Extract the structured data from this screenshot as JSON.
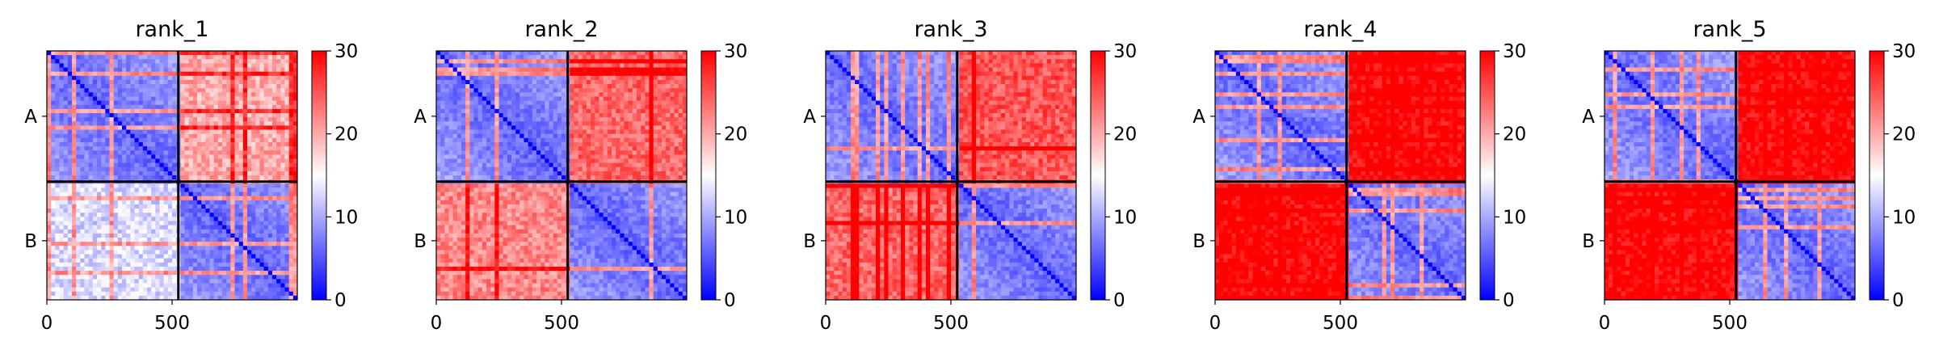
{
  "chart_data": {
    "type": "heatmap",
    "description_note": "",
    "colormap": {
      "name": "bwr",
      "low": "#0000ff",
      "mid": "#ffffff",
      "high": "#ff0000"
    },
    "vmin": 0,
    "vmax": 30,
    "colorbar_ticks": [
      "0",
      "10",
      "20",
      "30"
    ],
    "xlim": [
      0,
      1000
    ],
    "x_ticks": [
      {
        "value": 0,
        "label": "0"
      },
      {
        "value": 500,
        "label": "500"
      }
    ],
    "chain_boundary": 525,
    "y_ticks": [
      {
        "chain": "A",
        "label": "A"
      },
      {
        "chain": "B",
        "label": "B"
      }
    ],
    "panels": [
      {
        "title": "rank_1",
        "blocks": {
          "AA": 6,
          "AB": 20,
          "BA": 13,
          "BB": 6
        }
      },
      {
        "title": "rank_2",
        "blocks": {
          "AA": 6,
          "AB": 24,
          "BA": 22,
          "BB": 6
        }
      },
      {
        "title": "rank_3",
        "blocks": {
          "AA": 6,
          "AB": 25,
          "BA": 24,
          "BB": 6
        }
      },
      {
        "title": "rank_4",
        "blocks": {
          "AA": 6,
          "AB": 30,
          "BA": 30,
          "BB": 6
        }
      },
      {
        "title": "rank_5",
        "blocks": {
          "AA": 6,
          "AB": 30,
          "BA": 30,
          "BB": 6
        }
      }
    ]
  }
}
